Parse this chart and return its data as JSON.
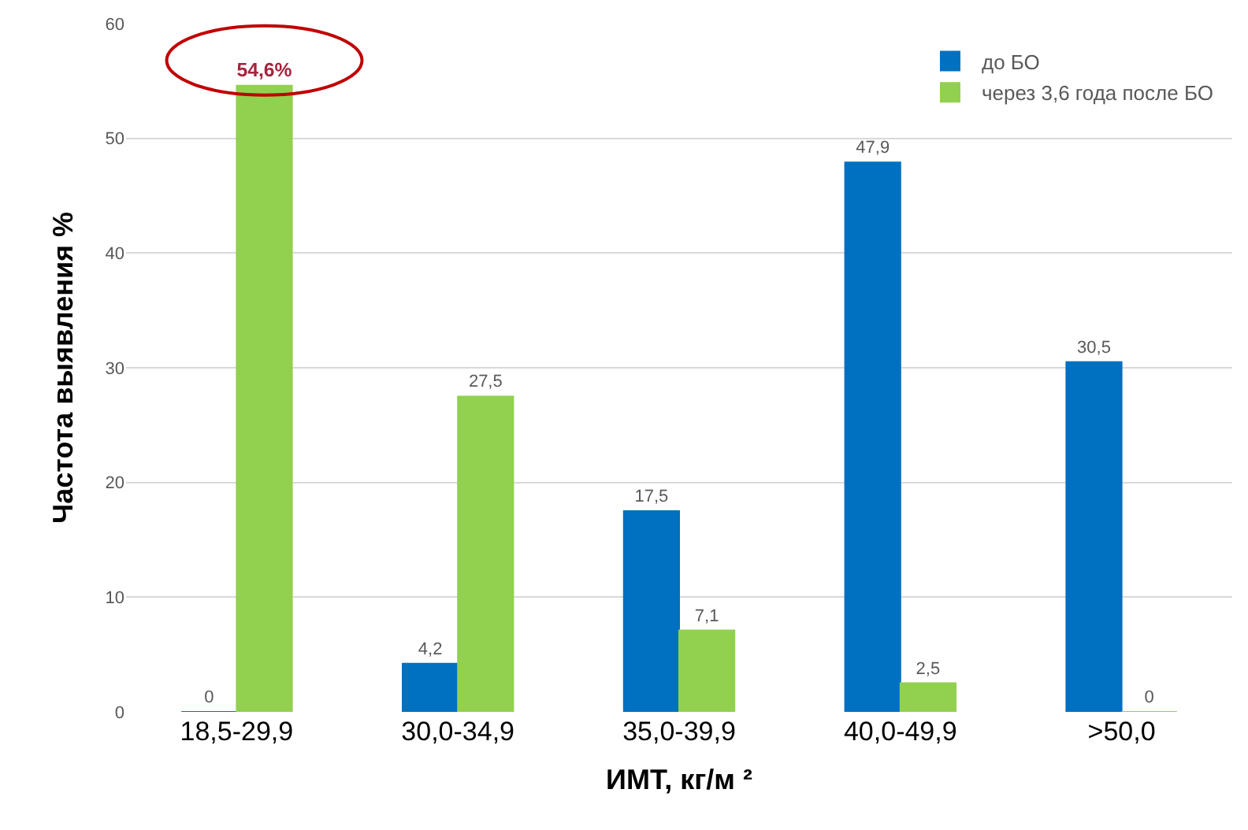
{
  "chart_data": {
    "type": "bar",
    "xlabel": "ИМТ, кг/м ²",
    "ylabel": "Частота выявления %",
    "categories": [
      "18,5-29,9",
      "30,0-34,9",
      "35,0-39,9",
      "40,0-49,9",
      ">50,0"
    ],
    "series": [
      {
        "name": "до БО",
        "color": "#0070c0",
        "values": [
          0,
          4.2,
          17.5,
          47.9,
          30.5
        ],
        "value_labels": [
          "0",
          "4,2",
          "17,5",
          "47,9",
          "30,5"
        ]
      },
      {
        "name": "через 3,6 года после БО",
        "color": "#92d050",
        "values": [
          54.6,
          27.5,
          7.1,
          2.5,
          0
        ],
        "value_labels": [
          "54,6%",
          "27,5",
          "7,1",
          "2,5",
          "0"
        ]
      }
    ],
    "ylim": [
      0,
      60
    ],
    "yticks": [
      0,
      10,
      20,
      30,
      40,
      50,
      60
    ],
    "grid": "y",
    "legend": "top right"
  }
}
